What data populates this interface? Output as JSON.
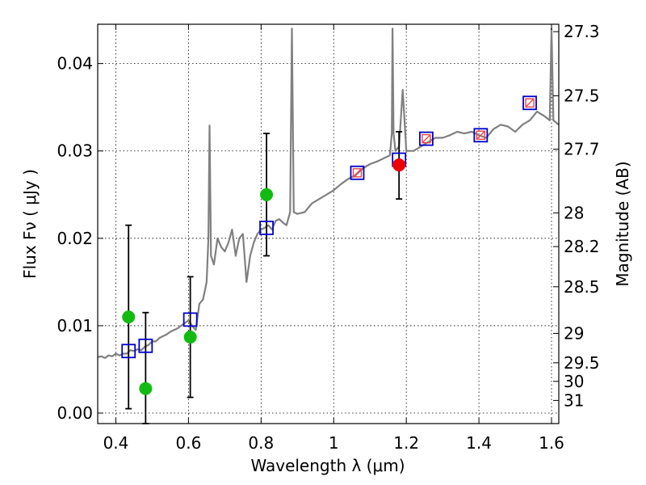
{
  "chart_data": {
    "type": "scatter",
    "xlabel": "Wavelength  λ (μm)",
    "ylabel": "Flux  Fν  ( μJy )",
    "y2label": "Magnitude (AB)",
    "xlim": [
      0.35,
      1.62
    ],
    "ylim": [
      -0.0012,
      0.0445
    ],
    "grid": true,
    "x_ticks": [
      {
        "value": 0.4,
        "label": "0.4"
      },
      {
        "value": 0.6,
        "label": "0.6"
      },
      {
        "value": 0.8,
        "label": "0.8"
      },
      {
        "value": 1.0,
        "label": "1"
      },
      {
        "value": 1.2,
        "label": "1.2"
      },
      {
        "value": 1.4,
        "label": "1.4"
      },
      {
        "value": 1.6,
        "label": "1.6"
      }
    ],
    "y_ticks": [
      {
        "value": 0.0,
        "label": "0.00"
      },
      {
        "value": 0.01,
        "label": "0.01"
      },
      {
        "value": 0.02,
        "label": "0.02"
      },
      {
        "value": 0.03,
        "label": "0.03"
      },
      {
        "value": 0.04,
        "label": "0.04"
      }
    ],
    "mag_ticks": [
      {
        "mag": 27.3,
        "label": "27.3"
      },
      {
        "mag": 27.5,
        "label": "27.5"
      },
      {
        "mag": 27.7,
        "label": "27.7"
      },
      {
        "mag": 28,
        "label": "28"
      },
      {
        "mag": 28.2,
        "label": "28.2"
      },
      {
        "mag": 28.5,
        "label": "28.5"
      },
      {
        "mag": 29,
        "label": "29"
      },
      {
        "mag": 29.5,
        "label": "29.5"
      },
      {
        "mag": 30,
        "label": "30"
      },
      {
        "mag": 31,
        "label": "31"
      }
    ],
    "colors": {
      "template": "#808080",
      "ground_points": "#11bb11",
      "hst_point": "#ee0000",
      "model_boxes": "#0000cc",
      "model_marks": "#ee4444",
      "errorbars": "#000000"
    },
    "template_spectrum": [
      [
        0.35,
        0.0064
      ],
      [
        0.36,
        0.0065
      ],
      [
        0.37,
        0.0063
      ],
      [
        0.38,
        0.0066
      ],
      [
        0.39,
        0.0065
      ],
      [
        0.4,
        0.0068
      ],
      [
        0.41,
        0.0066
      ],
      [
        0.42,
        0.0068
      ],
      [
        0.43,
        0.0068
      ],
      [
        0.44,
        0.0072
      ],
      [
        0.45,
        0.0071
      ],
      [
        0.46,
        0.0073
      ],
      [
        0.47,
        0.0072
      ],
      [
        0.48,
        0.0076
      ],
      [
        0.49,
        0.0078
      ],
      [
        0.5,
        0.0082
      ],
      [
        0.51,
        0.0082
      ],
      [
        0.52,
        0.0086
      ],
      [
        0.53,
        0.0088
      ],
      [
        0.54,
        0.009
      ],
      [
        0.55,
        0.0093
      ],
      [
        0.56,
        0.0095
      ],
      [
        0.57,
        0.0097
      ],
      [
        0.58,
        0.01
      ],
      [
        0.59,
        0.0103
      ],
      [
        0.6,
        0.0106
      ],
      [
        0.61,
        0.01
      ],
      [
        0.62,
        0.0095
      ],
      [
        0.63,
        0.0125
      ],
      [
        0.64,
        0.013
      ],
      [
        0.65,
        0.015
      ],
      [
        0.655,
        0.02
      ],
      [
        0.658,
        0.0329
      ],
      [
        0.662,
        0.018
      ],
      [
        0.67,
        0.017
      ],
      [
        0.68,
        0.02
      ],
      [
        0.69,
        0.019
      ],
      [
        0.7,
        0.0185
      ],
      [
        0.71,
        0.0195
      ],
      [
        0.72,
        0.021
      ],
      [
        0.73,
        0.018
      ],
      [
        0.74,
        0.02
      ],
      [
        0.75,
        0.0205
      ],
      [
        0.76,
        0.015
      ],
      [
        0.77,
        0.018
      ],
      [
        0.78,
        0.0195
      ],
      [
        0.79,
        0.0205
      ],
      [
        0.8,
        0.021
      ],
      [
        0.81,
        0.0212
      ],
      [
        0.82,
        0.0215
      ],
      [
        0.83,
        0.021
      ],
      [
        0.84,
        0.022
      ],
      [
        0.85,
        0.0222
      ],
      [
        0.86,
        0.0218
      ],
      [
        0.87,
        0.0215
      ],
      [
        0.88,
        0.023
      ],
      [
        0.885,
        0.044
      ],
      [
        0.89,
        0.023
      ],
      [
        0.9,
        0.0228
      ],
      [
        0.92,
        0.023
      ],
      [
        0.94,
        0.024
      ],
      [
        0.96,
        0.0245
      ],
      [
        0.98,
        0.025
      ],
      [
        1.0,
        0.0255
      ],
      [
        1.02,
        0.0262
      ],
      [
        1.04,
        0.0268
      ],
      [
        1.06,
        0.0272
      ],
      [
        1.08,
        0.028
      ],
      [
        1.1,
        0.0285
      ],
      [
        1.12,
        0.0288
      ],
      [
        1.14,
        0.0292
      ],
      [
        1.155,
        0.0295
      ],
      [
        1.16,
        0.032
      ],
      [
        1.162,
        0.044
      ],
      [
        1.165,
        0.032
      ],
      [
        1.17,
        0.03
      ],
      [
        1.18,
        0.0305
      ],
      [
        1.19,
        0.037
      ],
      [
        1.2,
        0.03
      ],
      [
        1.22,
        0.03
      ],
      [
        1.24,
        0.0305
      ],
      [
        1.26,
        0.031
      ],
      [
        1.28,
        0.0315
      ],
      [
        1.3,
        0.0315
      ],
      [
        1.32,
        0.0318
      ],
      [
        1.34,
        0.0322
      ],
      [
        1.36,
        0.032
      ],
      [
        1.38,
        0.0322
      ],
      [
        1.4,
        0.0318
      ],
      [
        1.42,
        0.0315
      ],
      [
        1.44,
        0.0325
      ],
      [
        1.46,
        0.033
      ],
      [
        1.48,
        0.0328
      ],
      [
        1.5,
        0.0322
      ],
      [
        1.52,
        0.033
      ],
      [
        1.54,
        0.0335
      ],
      [
        1.56,
        0.0345
      ],
      [
        1.58,
        0.034
      ],
      [
        1.595,
        0.0335
      ],
      [
        1.6,
        0.044
      ],
      [
        1.605,
        0.0335
      ],
      [
        1.62,
        0.033
      ]
    ],
    "ground_points": [
      {
        "x": 0.435,
        "y": 0.011,
        "err_low": 0.0105,
        "err_high": 0.0105
      },
      {
        "x": 0.482,
        "y": 0.0028,
        "err_low": 0.004,
        "err_high": 0.0087
      },
      {
        "x": 0.605,
        "y": 0.0087,
        "err_low": 0.0069,
        "err_high": 0.0069
      },
      {
        "x": 0.815,
        "y": 0.025,
        "err_low": 0.007,
        "err_high": 0.007
      }
    ],
    "hst_points": [
      {
        "x": 1.18,
        "y": 0.0284,
        "err_low": 0.0039,
        "err_high": 0.0038
      }
    ],
    "model_photometry": [
      {
        "x": 0.435,
        "y": 0.0071
      },
      {
        "x": 0.482,
        "y": 0.0077
      },
      {
        "x": 0.605,
        "y": 0.0107
      },
      {
        "x": 0.815,
        "y": 0.0212
      },
      {
        "x": 1.065,
        "y": 0.0275
      },
      {
        "x": 1.18,
        "y": 0.029
      },
      {
        "x": 1.255,
        "y": 0.0314
      },
      {
        "x": 1.405,
        "y": 0.0318
      },
      {
        "x": 1.54,
        "y": 0.0355
      }
    ],
    "observed_marks": [
      {
        "x": 1.065,
        "y": 0.0275
      },
      {
        "x": 1.255,
        "y": 0.0314
      },
      {
        "x": 1.405,
        "y": 0.0318
      },
      {
        "x": 1.54,
        "y": 0.0355
      }
    ]
  }
}
